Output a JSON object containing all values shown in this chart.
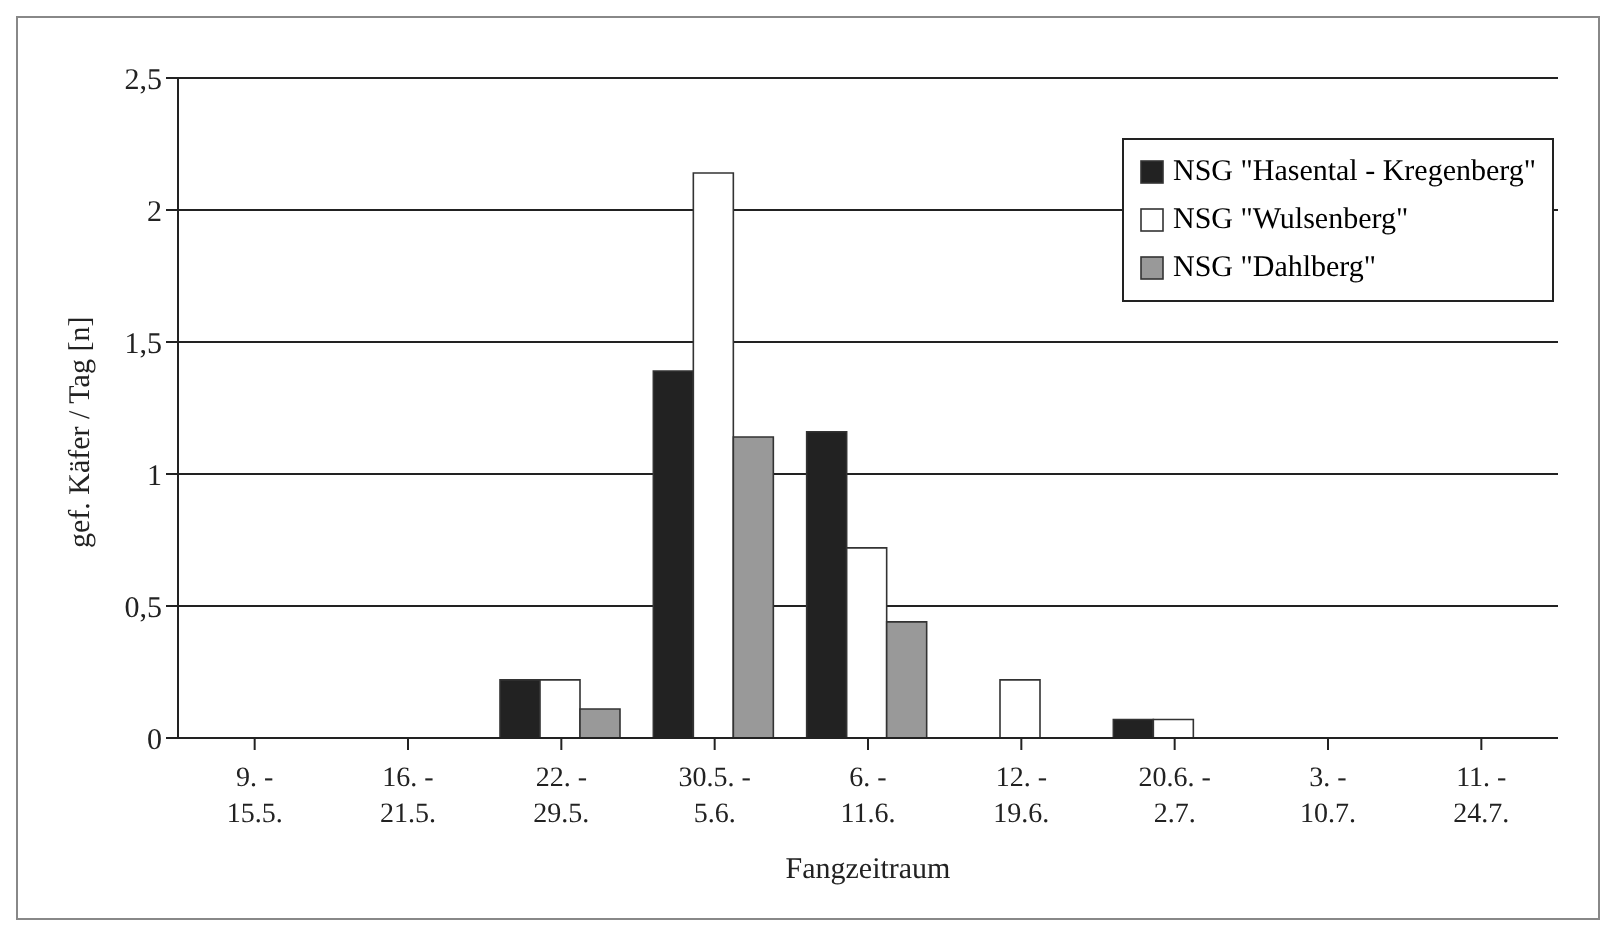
{
  "chart_data": {
    "type": "bar",
    "xlabel": "Fangzeitraum",
    "ylabel": "gef. Käfer / Tag [n]",
    "categories": [
      "9. -\n15.5.",
      "16. -\n21.5.",
      "22. -\n29.5.",
      "30.5. -\n5.6.",
      "6. -\n11.6.",
      "12. -\n19.6.",
      "20.6. -\n2.7.",
      "3. -\n10.7.",
      "11. -\n24.7."
    ],
    "series": [
      {
        "name": "NSG \"Hasental - Kregenberg\"",
        "color": "#222222",
        "values": [
          0,
          0,
          0.22,
          1.39,
          1.16,
          0,
          0.07,
          0,
          0
        ]
      },
      {
        "name": "NSG \"Wulsenberg\"",
        "color": "#ffffff",
        "values": [
          0,
          0,
          0.22,
          2.14,
          0.72,
          0.22,
          0.07,
          0,
          0
        ]
      },
      {
        "name": "NSG \"Dahlberg\"",
        "color": "#999999",
        "values": [
          0,
          0,
          0.11,
          1.14,
          0.44,
          0,
          0,
          0,
          0
        ]
      }
    ],
    "ylim": [
      0,
      2.5
    ],
    "yticks": [
      {
        "value": 0,
        "label": "0"
      },
      {
        "value": 0.5,
        "label": "0,5"
      },
      {
        "value": 1,
        "label": "1"
      },
      {
        "value": 1.5,
        "label": "1,5"
      },
      {
        "value": 2,
        "label": "2"
      },
      {
        "value": 2.5,
        "label": "2,5"
      }
    ],
    "grid": "y",
    "legend": "top right"
  }
}
